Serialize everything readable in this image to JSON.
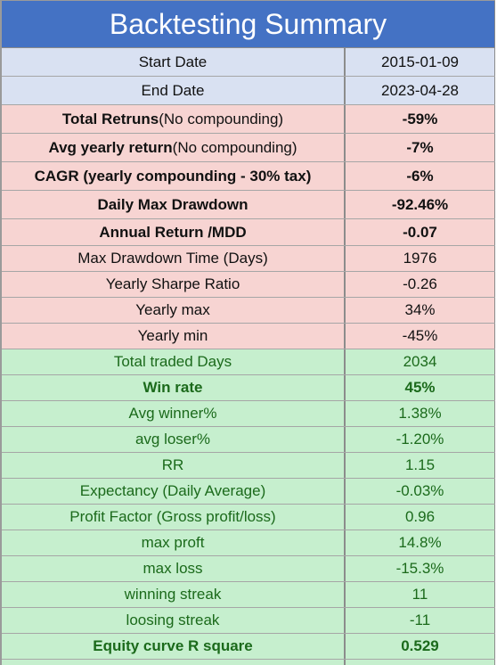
{
  "title": "Backtesting Summary",
  "colors": {
    "header": "#4472c4",
    "date_rows": "#d9e1f2",
    "return_rows": "#f7d4d2",
    "trade_rows": "#c6efce",
    "trade_text": "#1b6a1b"
  },
  "rows": [
    {
      "label": "Start Date",
      "value": "2015-01-09"
    },
    {
      "label": "End Date",
      "value": "2023-04-28"
    },
    {
      "label_main": "Total Retruns",
      "label_note": " (No compounding)",
      "value": "-59%"
    },
    {
      "label_main": "Avg yearly return",
      "label_note": " (No compounding)",
      "value": "-7%"
    },
    {
      "label": "CAGR (yearly compounding - 30% tax)",
      "value": "-6%"
    },
    {
      "label": "Daily Max Drawdown",
      "value": "-92.46%"
    },
    {
      "label": "Annual Return /MDD",
      "value": "-0.07"
    },
    {
      "label": "Max Drawdown Time (Days)",
      "value": "1976"
    },
    {
      "label": "Yearly Sharpe Ratio",
      "value": "-0.26"
    },
    {
      "label": "Yearly max",
      "value": "34%"
    },
    {
      "label": "Yearly min",
      "value": "-45%"
    },
    {
      "label": "Total traded Days",
      "value": "2034"
    },
    {
      "label": "Win rate",
      "value": "45%"
    },
    {
      "label": "Avg winner%",
      "value": "1.38%"
    },
    {
      "label": "avg loser%",
      "value": "-1.20%"
    },
    {
      "label": "RR",
      "value": "1.15"
    },
    {
      "label": "Expectancy (Daily Average)",
      "value": "-0.03%"
    },
    {
      "label": "Profit Factor (Gross profit/loss)",
      "value": "0.96"
    },
    {
      "label": "max proft",
      "value": "14.8%"
    },
    {
      "label": "max loss",
      "value": "-15.3%"
    },
    {
      "label": "winning streak",
      "value": "11"
    },
    {
      "label": "loosing streak",
      "value": "-11"
    },
    {
      "label": "Equity curve R square",
      "value": "0.529"
    }
  ]
}
